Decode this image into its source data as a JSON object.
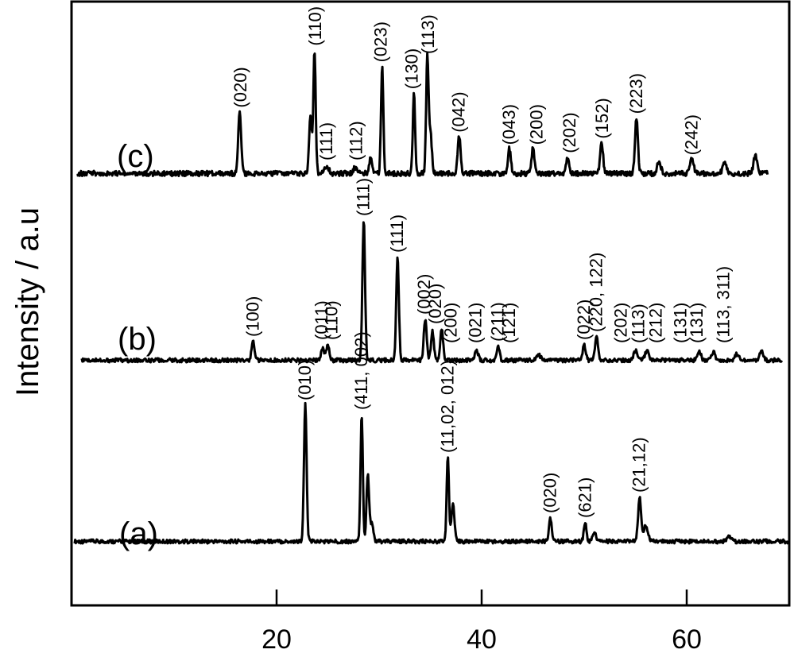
{
  "chart_data": {
    "type": "line",
    "title": "",
    "xlabel": "",
    "ylabel": "Intensity / a.u",
    "xlim": [
      0,
      70
    ],
    "xticks": [
      20,
      40,
      60
    ],
    "grid": false,
    "legend": "none",
    "series": [
      {
        "name": "(a)",
        "baseline": 0.3,
        "peaks": [
          {
            "x": 22.8,
            "h": 8.6,
            "w": 0.18
          },
          {
            "x": 28.3,
            "h": 8.0,
            "w": 0.16
          },
          {
            "x": 28.9,
            "h": 4.2,
            "w": 0.18
          },
          {
            "x": 29.3,
            "h": 1.2,
            "w": 0.2
          },
          {
            "x": 36.7,
            "h": 5.3,
            "w": 0.16
          },
          {
            "x": 37.2,
            "h": 2.4,
            "w": 0.2
          },
          {
            "x": 46.7,
            "h": 1.5,
            "w": 0.2
          },
          {
            "x": 50.1,
            "h": 1.2,
            "w": 0.18
          },
          {
            "x": 51.0,
            "h": 0.5,
            "w": 0.25
          },
          {
            "x": 55.4,
            "h": 2.8,
            "w": 0.2
          },
          {
            "x": 56.0,
            "h": 1.0,
            "w": 0.3
          },
          {
            "x": 64.2,
            "h": 0.3,
            "w": 0.3
          }
        ],
        "annotations": [
          {
            "x": 22.8,
            "label": "(010)"
          },
          {
            "x": 28.3,
            "label": "(411, 002)"
          },
          {
            "x": 36.7,
            "label": "(11,02, 012)"
          },
          {
            "x": 46.7,
            "label": "(020)"
          },
          {
            "x": 50.1,
            "label": "(621)"
          },
          {
            "x": 55.4,
            "label": "(21,12)"
          }
        ]
      },
      {
        "name": "(b)",
        "baseline": 0.3,
        "peaks": [
          {
            "x": 17.7,
            "h": 1.2,
            "w": 0.2
          },
          {
            "x": 24.5,
            "h": 0.8,
            "w": 0.2
          },
          {
            "x": 25.0,
            "h": 1.0,
            "w": 0.2
          },
          {
            "x": 28.5,
            "h": 8.8,
            "w": 0.18
          },
          {
            "x": 31.8,
            "h": 6.5,
            "w": 0.18
          },
          {
            "x": 34.5,
            "h": 2.6,
            "w": 0.2
          },
          {
            "x": 35.2,
            "h": 1.8,
            "w": 0.2
          },
          {
            "x": 36.1,
            "h": 2.0,
            "w": 0.2
          },
          {
            "x": 39.5,
            "h": 0.6,
            "w": 0.25
          },
          {
            "x": 41.6,
            "h": 0.9,
            "w": 0.2
          },
          {
            "x": 45.6,
            "h": 0.3,
            "w": 0.3
          },
          {
            "x": 50.0,
            "h": 1.0,
            "w": 0.2
          },
          {
            "x": 51.2,
            "h": 1.5,
            "w": 0.2
          },
          {
            "x": 55.0,
            "h": 0.6,
            "w": 0.25
          },
          {
            "x": 56.1,
            "h": 0.6,
            "w": 0.25
          },
          {
            "x": 61.2,
            "h": 0.6,
            "w": 0.25
          },
          {
            "x": 62.6,
            "h": 0.5,
            "w": 0.25
          },
          {
            "x": 64.9,
            "h": 0.4,
            "w": 0.25
          },
          {
            "x": 67.3,
            "h": 0.6,
            "w": 0.25
          }
        ],
        "annotations": [
          {
            "x": 17.7,
            "label": "(100)"
          },
          {
            "x": 24.4,
            "label": "(011)"
          },
          {
            "x": 25.4,
            "label": "(110)"
          },
          {
            "x": 28.5,
            "label": "(111)"
          },
          {
            "x": 31.8,
            "label": "(111)"
          },
          {
            "x": 34.4,
            "label": "(002)"
          },
          {
            "x": 35.5,
            "label": "(020)"
          },
          {
            "x": 37.0,
            "label": "(200)"
          },
          {
            "x": 39.4,
            "label": "(021)"
          },
          {
            "x": 41.6,
            "label": "(211)"
          },
          {
            "x": 42.7,
            "label": "(121)"
          },
          {
            "x": 50.0,
            "label": "(022)"
          },
          {
            "x": 51.2,
            "label": "(220, 122)"
          },
          {
            "x": 53.6,
            "label": "(202)"
          },
          {
            "x": 55.3,
            "label": "(113)"
          },
          {
            "x": 57.0,
            "label": "(212)"
          },
          {
            "x": 59.4,
            "label": "(131)"
          },
          {
            "x": 61.0,
            "label": "(131)"
          },
          {
            "x": 63.6,
            "label": "(113, 311)"
          }
        ]
      },
      {
        "name": "(c)",
        "baseline": 0.4,
        "peaks": [
          {
            "x": 16.4,
            "h": 3.0,
            "w": 0.2
          },
          {
            "x": 23.3,
            "h": 2.8,
            "w": 0.18
          },
          {
            "x": 23.7,
            "h": 6.0,
            "w": 0.16
          },
          {
            "x": 24.9,
            "h": 0.4,
            "w": 0.25
          },
          {
            "x": 27.7,
            "h": 0.3,
            "w": 0.3
          },
          {
            "x": 29.2,
            "h": 0.8,
            "w": 0.2
          },
          {
            "x": 30.3,
            "h": 5.2,
            "w": 0.16
          },
          {
            "x": 33.4,
            "h": 3.9,
            "w": 0.16
          },
          {
            "x": 34.7,
            "h": 5.6,
            "w": 0.16
          },
          {
            "x": 35.0,
            "h": 2.0,
            "w": 0.2
          },
          {
            "x": 37.8,
            "h": 1.8,
            "w": 0.2
          },
          {
            "x": 42.7,
            "h": 1.2,
            "w": 0.2
          },
          {
            "x": 45.0,
            "h": 1.2,
            "w": 0.2
          },
          {
            "x": 48.4,
            "h": 0.8,
            "w": 0.2
          },
          {
            "x": 51.7,
            "h": 1.5,
            "w": 0.2
          },
          {
            "x": 55.1,
            "h": 2.7,
            "w": 0.2
          },
          {
            "x": 57.3,
            "h": 0.6,
            "w": 0.25
          },
          {
            "x": 60.5,
            "h": 0.7,
            "w": 0.25
          },
          {
            "x": 63.7,
            "h": 0.6,
            "w": 0.25
          },
          {
            "x": 66.7,
            "h": 0.9,
            "w": 0.25
          }
        ],
        "annotations": [
          {
            "x": 16.5,
            "label": "(020)"
          },
          {
            "x": 23.8,
            "label": "(110)"
          },
          {
            "x": 24.9,
            "label": "(111)"
          },
          {
            "x": 27.8,
            "label": "(112)"
          },
          {
            "x": 30.2,
            "label": "(023)"
          },
          {
            "x": 33.2,
            "label": "(130)"
          },
          {
            "x": 34.8,
            "label": "(113)"
          },
          {
            "x": 37.8,
            "label": "(042)"
          },
          {
            "x": 42.7,
            "label": "(043)"
          },
          {
            "x": 45.4,
            "label": "(200)"
          },
          {
            "x": 48.6,
            "label": "(202)"
          },
          {
            "x": 51.8,
            "label": "(152)"
          },
          {
            "x": 55.1,
            "label": "(223)"
          },
          {
            "x": 60.5,
            "label": "(242)"
          }
        ]
      }
    ]
  }
}
